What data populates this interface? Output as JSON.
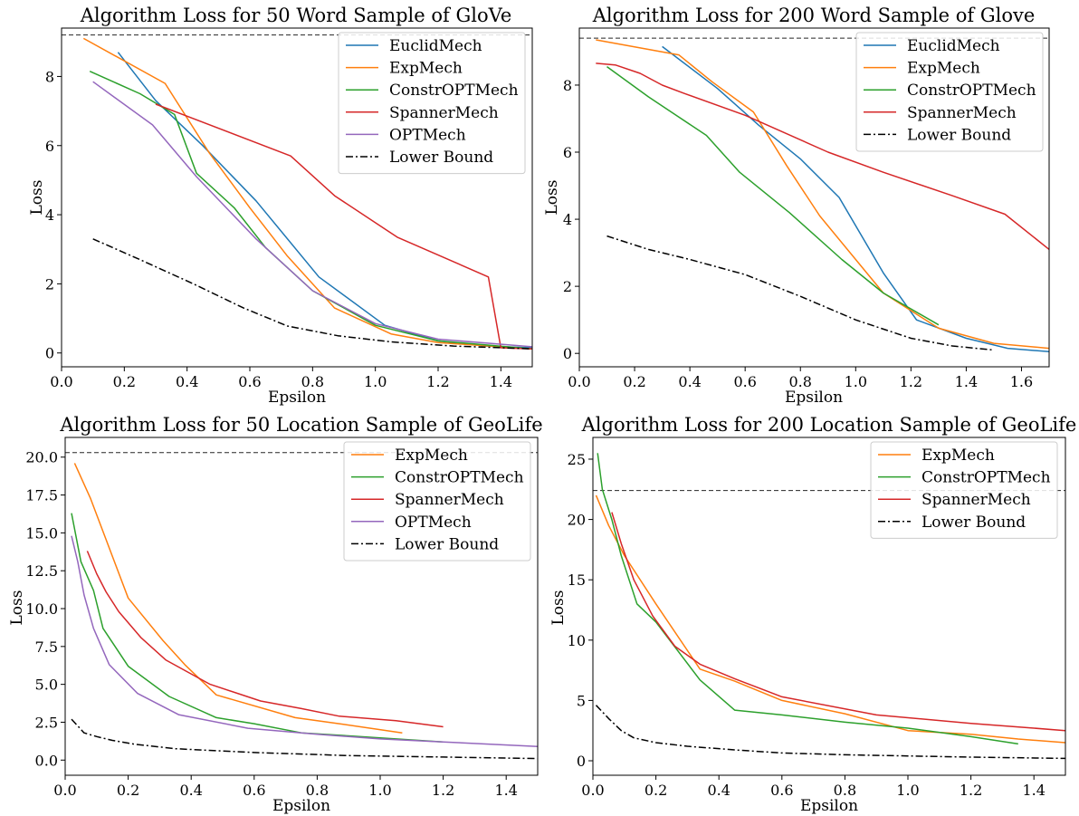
{
  "chart_data": [
    {
      "type": "line",
      "title": "Algorithm Loss for 50 Word Sample of GloVe",
      "xlabel": "Epsilon",
      "ylabel": "Loss",
      "xlim": [
        0.0,
        1.5
      ],
      "ylim": [
        -0.4,
        9.4
      ],
      "xticks": [
        "0.0",
        "0.2",
        "0.4",
        "0.6",
        "0.8",
        "1.0",
        "1.2",
        "1.4"
      ],
      "yticks": [
        "0",
        "2",
        "4",
        "6",
        "8"
      ],
      "grid": false,
      "legend_position": "top-right",
      "reference_line": {
        "y": 9.2,
        "style": "dashed"
      },
      "series": [
        {
          "name": "EuclidMech",
          "color": "#1f77b4",
          "style": "solid",
          "x": [
            0.18,
            0.3,
            0.45,
            0.62,
            0.82,
            1.03,
            1.2,
            1.35,
            1.5
          ],
          "y": [
            8.7,
            7.3,
            6.0,
            4.4,
            2.2,
            0.8,
            0.35,
            0.2,
            0.15
          ]
        },
        {
          "name": "ExpMech",
          "color": "#ff7f0e",
          "style": "solid",
          "x": [
            0.07,
            0.33,
            0.47,
            0.6,
            0.72,
            0.87,
            1.05,
            1.2,
            1.5
          ],
          "y": [
            9.1,
            7.8,
            5.8,
            4.2,
            2.8,
            1.3,
            0.55,
            0.3,
            0.12
          ]
        },
        {
          "name": "ConstrOPTMech",
          "color": "#2ca02c",
          "style": "solid",
          "x": [
            0.09,
            0.25,
            0.36,
            0.43,
            0.55,
            0.65,
            0.8,
            1.0,
            1.2,
            1.5
          ],
          "y": [
            8.15,
            7.5,
            6.9,
            5.2,
            4.2,
            3.05,
            1.8,
            0.8,
            0.35,
            0.12
          ]
        },
        {
          "name": "SpannerMech",
          "color": "#d62728",
          "style": "solid",
          "x": [
            0.3,
            0.73,
            0.87,
            1.07,
            1.36,
            1.4,
            1.5
          ],
          "y": [
            7.2,
            5.7,
            4.55,
            3.35,
            2.2,
            0.15,
            0.12
          ]
        },
        {
          "name": "OPTMech",
          "color": "#9467bd",
          "style": "solid",
          "x": [
            0.1,
            0.29,
            0.43,
            0.62,
            0.8,
            1.0,
            1.2,
            1.5
          ],
          "y": [
            7.85,
            6.6,
            5.1,
            3.3,
            1.8,
            0.85,
            0.4,
            0.18
          ]
        },
        {
          "name": "Lower Bound",
          "color": "#000000",
          "style": "dashdot",
          "x": [
            0.1,
            0.25,
            0.42,
            0.58,
            0.72,
            0.88,
            1.05,
            1.25,
            1.5
          ],
          "y": [
            3.3,
            2.7,
            2.0,
            1.3,
            0.78,
            0.5,
            0.32,
            0.2,
            0.12
          ]
        }
      ]
    },
    {
      "type": "line",
      "title": "Algorithm Loss for 200 Word Sample of Glove",
      "xlabel": "Epsilon",
      "ylabel": "Loss",
      "xlim": [
        0.0,
        1.7
      ],
      "ylim": [
        -0.4,
        9.7
      ],
      "xticks": [
        "0.0",
        "0.2",
        "0.4",
        "0.6",
        "0.8",
        "1.0",
        "1.2",
        "1.4",
        "1.6"
      ],
      "yticks": [
        "0",
        "2",
        "4",
        "6",
        "8"
      ],
      "grid": false,
      "legend_position": "top-right",
      "reference_line": {
        "y": 9.4,
        "style": "dashed"
      },
      "series": [
        {
          "name": "EuclidMech",
          "color": "#1f77b4",
          "style": "solid",
          "x": [
            0.3,
            0.5,
            0.65,
            0.8,
            0.94,
            1.1,
            1.22,
            1.4,
            1.55,
            1.7
          ],
          "y": [
            9.15,
            7.9,
            6.8,
            5.8,
            4.65,
            2.4,
            1.0,
            0.45,
            0.15,
            0.05
          ]
        },
        {
          "name": "ExpMech",
          "color": "#ff7f0e",
          "style": "solid",
          "x": [
            0.06,
            0.36,
            0.48,
            0.63,
            0.75,
            0.87,
            1.1,
            1.3,
            1.5,
            1.7
          ],
          "y": [
            9.35,
            8.9,
            8.1,
            7.2,
            5.6,
            4.1,
            1.8,
            0.75,
            0.3,
            0.15
          ]
        },
        {
          "name": "ConstrOPTMech",
          "color": "#2ca02c",
          "style": "solid",
          "x": [
            0.1,
            0.25,
            0.46,
            0.58,
            0.76,
            0.95,
            1.1,
            1.3
          ],
          "y": [
            8.55,
            7.65,
            6.5,
            5.4,
            4.2,
            2.8,
            1.8,
            0.85
          ]
        },
        {
          "name": "SpannerMech",
          "color": "#d62728",
          "style": "solid",
          "x": [
            0.06,
            0.13,
            0.22,
            0.3,
            0.38,
            0.6,
            0.9,
            1.1,
            1.35,
            1.54,
            1.7
          ],
          "y": [
            8.65,
            8.6,
            8.35,
            8.0,
            7.75,
            7.1,
            6.0,
            5.4,
            4.7,
            4.15,
            3.1
          ]
        },
        {
          "name": "Lower Bound",
          "color": "#000000",
          "style": "dashdot",
          "x": [
            0.1,
            0.25,
            0.4,
            0.6,
            0.8,
            1.0,
            1.2,
            1.35,
            1.5
          ],
          "y": [
            3.5,
            3.1,
            2.8,
            2.35,
            1.7,
            1.0,
            0.45,
            0.22,
            0.1
          ]
        }
      ]
    },
    {
      "type": "line",
      "title": "Algorithm Loss for 50 Location Sample of GeoLife",
      "xlabel": "Epsilon",
      "ylabel": "Loss",
      "xlim": [
        0.0,
        1.5
      ],
      "ylim": [
        -1.0,
        21.3
      ],
      "xticks": [
        "0.0",
        "0.2",
        "0.4",
        "0.6",
        "0.8",
        "1.0",
        "1.2",
        "1.4"
      ],
      "yticks": [
        "0.0",
        "2.5",
        "5.0",
        "7.5",
        "10.0",
        "12.5",
        "15.0",
        "17.5",
        "20.0"
      ],
      "grid": false,
      "legend_position": "top-right",
      "reference_line": {
        "y": 20.3,
        "style": "dashed"
      },
      "series": [
        {
          "name": "ExpMech",
          "color": "#ff7f0e",
          "style": "solid",
          "x": [
            0.03,
            0.08,
            0.2,
            0.31,
            0.38,
            0.48,
            0.73,
            0.87,
            1.07
          ],
          "y": [
            19.6,
            17.3,
            10.7,
            7.9,
            6.3,
            4.3,
            2.8,
            2.4,
            1.8
          ]
        },
        {
          "name": "ConstrOPTMech",
          "color": "#2ca02c",
          "style": "solid",
          "x": [
            0.02,
            0.05,
            0.09,
            0.12,
            0.2,
            0.33,
            0.48,
            0.6,
            0.75,
            0.9,
            1.05,
            1.2
          ],
          "y": [
            16.3,
            13.1,
            11.2,
            8.7,
            6.2,
            4.2,
            2.8,
            2.4,
            1.8,
            1.6,
            1.4,
            1.2
          ]
        },
        {
          "name": "SpannerMech",
          "color": "#d62728",
          "style": "solid",
          "x": [
            0.07,
            0.1,
            0.13,
            0.17,
            0.24,
            0.32,
            0.46,
            0.62,
            0.75,
            0.87,
            1.05,
            1.2
          ],
          "y": [
            13.8,
            12.3,
            11.1,
            9.8,
            8.1,
            6.6,
            5.0,
            3.9,
            3.4,
            2.9,
            2.6,
            2.2
          ]
        },
        {
          "name": "OPTMech",
          "color": "#9467bd",
          "style": "solid",
          "x": [
            0.02,
            0.04,
            0.06,
            0.09,
            0.14,
            0.23,
            0.36,
            0.58,
            0.8,
            1.0,
            1.2,
            1.5
          ],
          "y": [
            14.8,
            13.1,
            10.9,
            8.7,
            6.3,
            4.4,
            3.0,
            2.1,
            1.7,
            1.4,
            1.2,
            0.9
          ]
        },
        {
          "name": "Lower Bound",
          "color": "#000000",
          "style": "dashdot",
          "x": [
            0.02,
            0.06,
            0.1,
            0.15,
            0.22,
            0.35,
            0.6,
            0.9,
            1.2,
            1.5
          ],
          "y": [
            2.7,
            1.8,
            1.55,
            1.3,
            1.05,
            0.75,
            0.5,
            0.3,
            0.2,
            0.1
          ]
        }
      ]
    },
    {
      "type": "line",
      "title": "Algorithm Loss for 200 Location Sample of GeoLife",
      "xlabel": "Epsilon",
      "ylabel": "Loss",
      "xlim": [
        0.0,
        1.5
      ],
      "ylim": [
        -1.2,
        26.8
      ],
      "xticks": [
        "0.0",
        "0.2",
        "0.4",
        "0.6",
        "0.8",
        "1.0",
        "1.2",
        "1.4"
      ],
      "yticks": [
        "0",
        "5",
        "10",
        "15",
        "20",
        "25"
      ],
      "grid": false,
      "legend_position": "top-right",
      "reference_line": {
        "y": 22.4,
        "style": "dashed"
      },
      "series": [
        {
          "name": "ExpMech",
          "color": "#ff7f0e",
          "style": "solid",
          "x": [
            0.01,
            0.05,
            0.1,
            0.2,
            0.34,
            0.45,
            0.6,
            0.8,
            1.0,
            1.2,
            1.35,
            1.5
          ],
          "y": [
            22.0,
            19.5,
            17.0,
            13.0,
            7.6,
            6.6,
            5.0,
            3.9,
            2.5,
            2.2,
            1.8,
            1.5
          ]
        },
        {
          "name": "ConstrOPTMech",
          "color": "#2ca02c",
          "style": "solid",
          "x": [
            0.015,
            0.03,
            0.06,
            0.09,
            0.14,
            0.2,
            0.34,
            0.45,
            0.6,
            0.8,
            1.0,
            1.2,
            1.35
          ],
          "y": [
            25.5,
            22.5,
            20.0,
            17.0,
            13.0,
            11.5,
            6.7,
            4.2,
            3.8,
            3.2,
            2.7,
            2.0,
            1.4
          ]
        },
        {
          "name": "SpannerMech",
          "color": "#d62728",
          "style": "solid",
          "x": [
            0.06,
            0.09,
            0.13,
            0.19,
            0.26,
            0.34,
            0.45,
            0.6,
            0.9,
            1.2,
            1.4,
            1.5
          ],
          "y": [
            20.6,
            18.0,
            15.0,
            12.0,
            9.5,
            8.0,
            6.8,
            5.3,
            3.8,
            3.1,
            2.7,
            2.5
          ]
        },
        {
          "name": "Lower Bound",
          "color": "#000000",
          "style": "dashdot",
          "x": [
            0.01,
            0.05,
            0.09,
            0.13,
            0.2,
            0.3,
            0.45,
            0.6,
            0.8,
            1.0,
            1.2,
            1.5
          ],
          "y": [
            4.6,
            3.5,
            2.5,
            1.9,
            1.5,
            1.2,
            0.9,
            0.65,
            0.5,
            0.4,
            0.3,
            0.2
          ]
        }
      ]
    }
  ]
}
